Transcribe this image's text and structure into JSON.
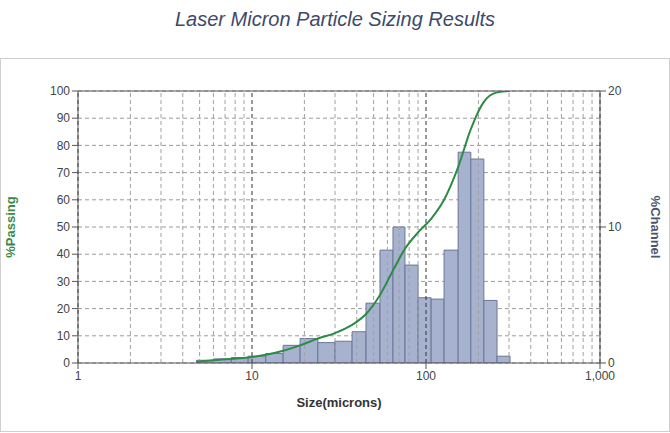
{
  "chart_data": {
    "type": "histogram",
    "title": "Laser Micron Particle Sizing Results",
    "x_label": "Size(microns)",
    "y_label": "%Passing",
    "y2_label": "%Channel",
    "log": "x",
    "grid": true,
    "xlim": [
      1,
      1000
    ],
    "xticks": [
      1,
      10,
      100,
      {
        "value": 1000,
        "label": "1,000"
      }
    ],
    "ylim": [
      0,
      100
    ],
    "yticks": [
      0,
      10,
      20,
      30,
      40,
      50,
      60,
      70,
      80,
      90,
      100
    ],
    "y2lim": [
      0,
      20
    ],
    "y2ticks": [
      0,
      10,
      20
    ],
    "series": [
      {
        "type": "histogram",
        "axis": "y2",
        "color": "#a7b2cf",
        "bins": [
          4.8,
          6,
          7.6,
          9.5,
          12,
          15.1,
          18.9,
          23.9,
          30,
          37.6,
          45.2,
          54.4,
          64.6,
          75.7,
          90,
          107,
          127,
          153,
          181,
          215,
          256,
          304
        ],
        "values": [
          0.2,
          0.3,
          0.4,
          0.5,
          0.7,
          1.3,
          1.8,
          1.5,
          1.6,
          2.3,
          4.4,
          8.3,
          10,
          7.2,
          4.8,
          4.7,
          8.3,
          15.5,
          15,
          4.6,
          0.5
        ]
      },
      {
        "type": "line",
        "color": "#2e8b46",
        "x": [
          4.8,
          6,
          7.6,
          9.5,
          12,
          15.1,
          18.9,
          23.9,
          30,
          37.6,
          45.2,
          54.4,
          64.6,
          75.7,
          90,
          107,
          127,
          153,
          181,
          215,
          256,
          304
        ],
        "values": [
          0.5,
          1,
          1.5,
          2,
          3,
          4.5,
          6.5,
          9,
          11,
          14,
          18,
          25,
          34,
          42,
          48,
          53,
          60,
          72,
          86,
          96,
          99.5,
          100
        ]
      }
    ]
  }
}
